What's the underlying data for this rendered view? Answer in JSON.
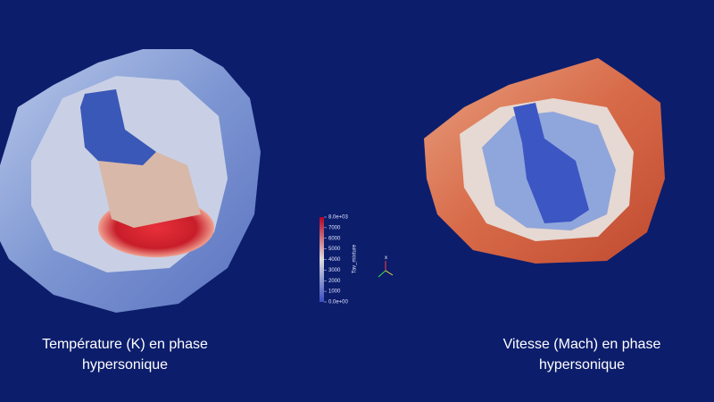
{
  "captions": {
    "left": [
      "Température (K) en phase",
      "hypersonique"
    ],
    "right": [
      "Vitesse (Mach) en phase",
      "hypersonique"
    ]
  },
  "colorbar": {
    "title": "Tav_mixture",
    "lim": [
      0,
      8000
    ],
    "ticks": [
      {
        "value": 8000,
        "label": "8.0e+03"
      },
      7000,
      6000,
      5000,
      4000,
      3000,
      2000,
      1000,
      {
        "value": 0,
        "label": "0.0e+00"
      }
    ]
  },
  "axes": {
    "x": "x"
  }
}
